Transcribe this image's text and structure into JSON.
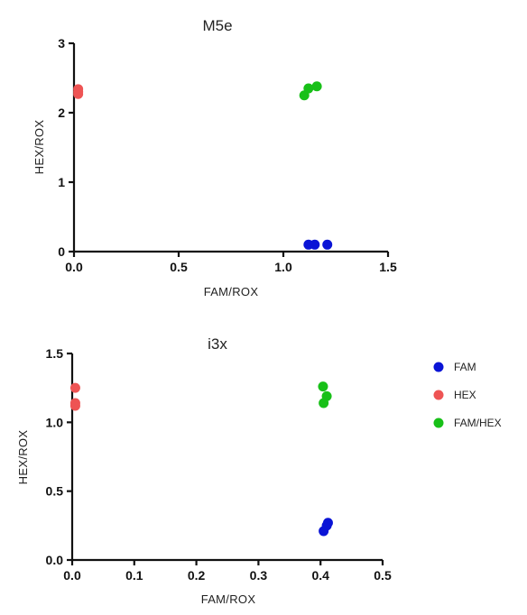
{
  "chart_data": [
    {
      "type": "scatter",
      "title": "M5e",
      "xlabel": "FAM/ROX",
      "ylabel": "HEX/ROX",
      "xlim": [
        0,
        1.5
      ],
      "ylim": [
        0,
        3
      ],
      "xticks": [
        "0.0",
        "0.5",
        "1.0",
        "1.5"
      ],
      "yticks": [
        "0",
        "1",
        "2",
        "3"
      ],
      "grid": false,
      "series": [
        {
          "name": "FAM",
          "color": "#0a14d6",
          "points": [
            [
              1.12,
              0.1
            ],
            [
              1.15,
              0.1
            ],
            [
              1.21,
              0.1
            ]
          ]
        },
        {
          "name": "HEX",
          "color": "#ee5454",
          "points": [
            [
              0.02,
              2.34
            ],
            [
              0.02,
              2.3
            ],
            [
              0.02,
              2.27
            ]
          ]
        },
        {
          "name": "FAM/HEX",
          "color": "#18c018",
          "points": [
            [
              1.1,
              2.25
            ],
            [
              1.12,
              2.35
            ],
            [
              1.16,
              2.38
            ]
          ]
        }
      ]
    },
    {
      "type": "scatter",
      "title": "i3x",
      "xlabel": "FAM/ROX",
      "ylabel": "HEX/ROX",
      "xlim": [
        0,
        0.5
      ],
      "ylim": [
        0,
        1.5
      ],
      "xticks": [
        "0.0",
        "0.1",
        "0.2",
        "0.3",
        "0.4",
        "0.5"
      ],
      "yticks": [
        "0.0",
        "0.5",
        "1.0",
        "1.5"
      ],
      "grid": false,
      "legend": "right",
      "series": [
        {
          "name": "FAM",
          "color": "#0a14d6",
          "points": [
            [
              0.405,
              0.21
            ],
            [
              0.41,
              0.25
            ],
            [
              0.412,
              0.27
            ]
          ]
        },
        {
          "name": "HEX",
          "color": "#ee5454",
          "points": [
            [
              0.005,
              1.25
            ],
            [
              0.005,
              1.14
            ],
            [
              0.005,
              1.12
            ]
          ]
        },
        {
          "name": "FAM/HEX",
          "color": "#18c018",
          "points": [
            [
              0.404,
              1.26
            ],
            [
              0.41,
              1.19
            ],
            [
              0.405,
              1.14
            ]
          ]
        }
      ]
    }
  ]
}
